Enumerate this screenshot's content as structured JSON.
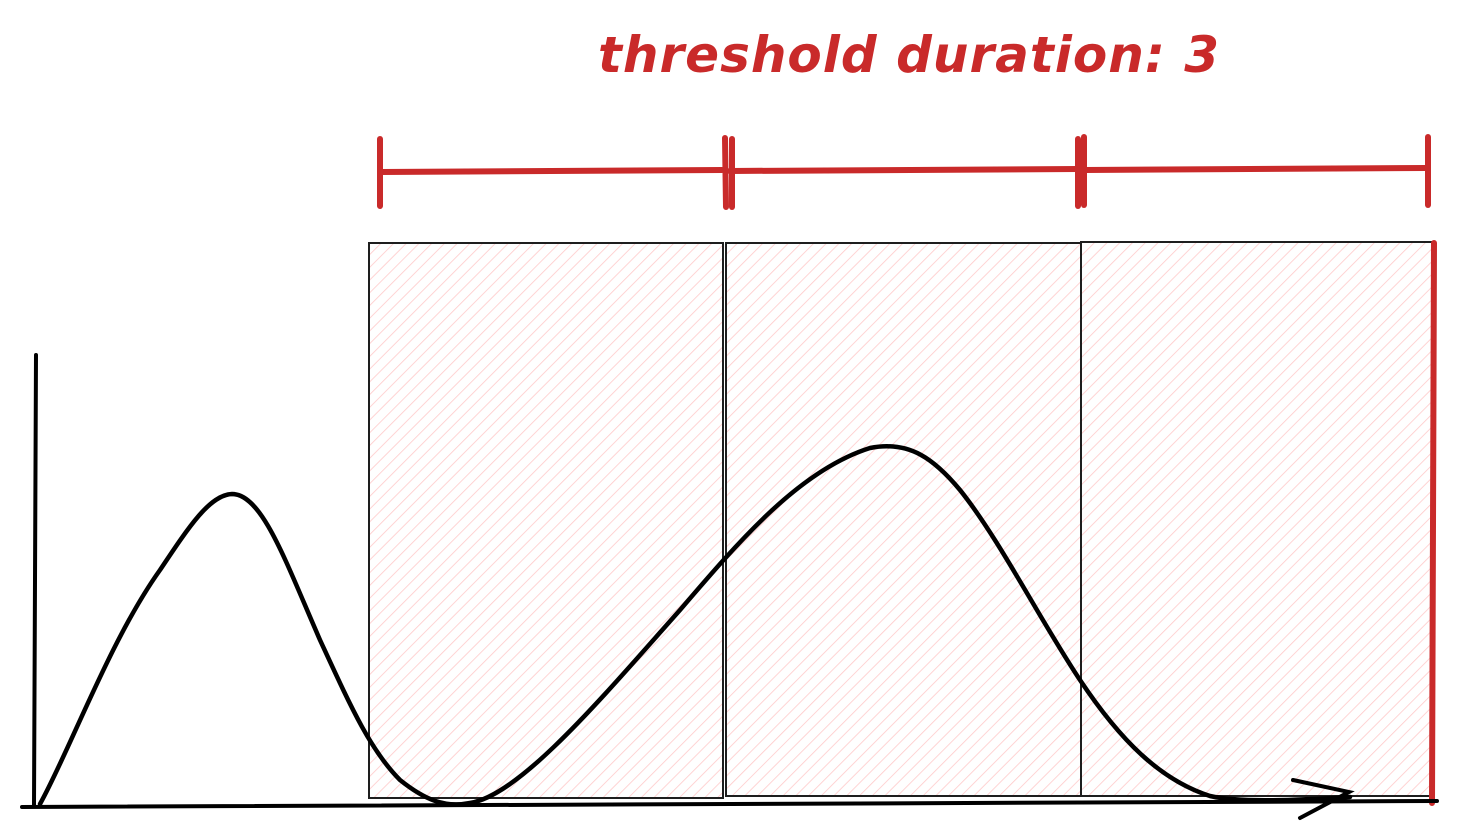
{
  "annotation": {
    "label": "threshold duration: 3",
    "color": "#c92a2a"
  },
  "segments": {
    "count": 3,
    "fill_color": "#ffc9c9",
    "bracket_color": "#c92a2a",
    "border_color": "#1e1e1e"
  },
  "axes": {
    "color": "#000000"
  },
  "curve": {
    "color": "#000000"
  }
}
